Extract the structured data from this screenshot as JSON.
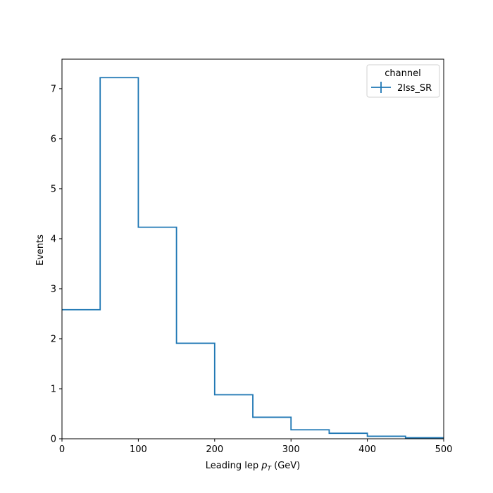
{
  "chart_data": {
    "type": "step",
    "title": "",
    "xlabel": {
      "main": "Leading lep ",
      "symbol": "p",
      "subscript": "T",
      "unit": " (GeV)"
    },
    "ylabel": "Events",
    "xlim": [
      0,
      500
    ],
    "ylim": [
      0,
      7.59
    ],
    "xticks": [
      0,
      100,
      200,
      300,
      400,
      500
    ],
    "yticks": [
      0,
      1,
      2,
      3,
      4,
      5,
      6,
      7
    ],
    "grid": false,
    "legend": {
      "title": "channel",
      "placement": "top-right",
      "entries": [
        "2lss_SR"
      ]
    },
    "bin_edges": [
      0,
      50,
      100,
      150,
      200,
      250,
      300,
      350,
      400,
      450,
      500
    ],
    "series": [
      {
        "name": "2lss_SR",
        "color": "#1f77b4",
        "values": [
          2.58,
          7.22,
          4.23,
          1.91,
          0.88,
          0.43,
          0.18,
          0.11,
          0.05,
          0.02
        ]
      }
    ]
  }
}
